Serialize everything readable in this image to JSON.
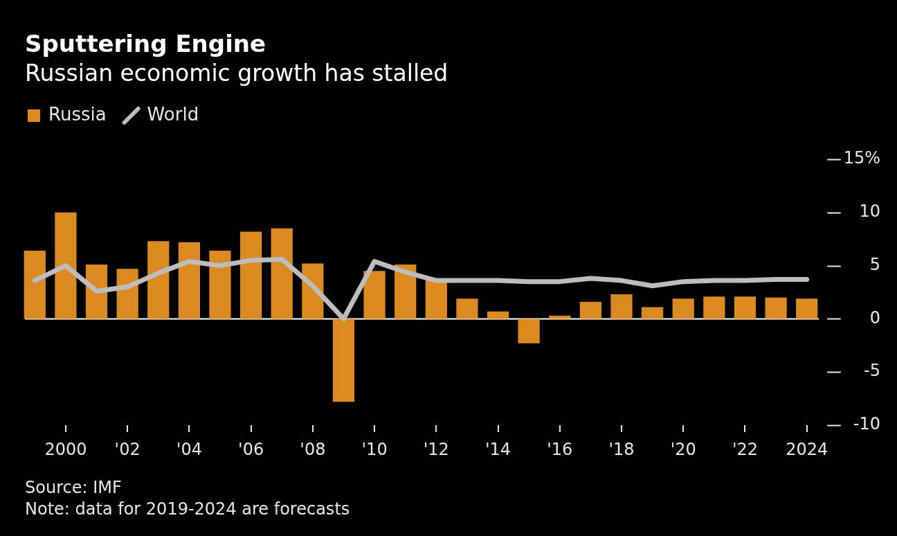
{
  "chart_data": {
    "type": "bar",
    "title": "Sputtering Engine",
    "subtitle": "Russian economic growth has stalled",
    "categories": [
      null,
      "2000",
      null,
      "'02",
      null,
      "'04",
      null,
      "'06",
      null,
      "'08",
      null,
      "'10",
      null,
      "'12",
      null,
      "'14",
      null,
      "'16",
      null,
      "'18",
      null,
      "'20",
      null,
      "'22",
      null,
      "2024"
    ],
    "series": [
      {
        "name": "Russia",
        "type": "bar",
        "color": "#db8a22",
        "values": [
          6.4,
          10.0,
          5.1,
          4.7,
          7.3,
          7.2,
          6.4,
          8.2,
          8.5,
          5.2,
          -7.8,
          4.5,
          5.1,
          3.7,
          1.9,
          0.7,
          -2.3,
          0.3,
          1.6,
          2.3,
          1.1,
          1.9,
          2.1,
          2.1,
          2.0,
          1.9
        ]
      },
      {
        "name": "World",
        "type": "line",
        "color": "#bdbdbd",
        "values": [
          3.6,
          5.0,
          2.6,
          3.0,
          4.3,
          5.4,
          5.0,
          5.5,
          5.6,
          3.1,
          0.0,
          5.4,
          4.4,
          3.6,
          3.6,
          3.6,
          3.5,
          3.5,
          3.8,
          3.6,
          3.1,
          3.5,
          3.6,
          3.6,
          3.7,
          3.7
        ]
      }
    ],
    "ylim": [
      -10,
      15
    ],
    "yticks": [
      {
        "value": 15,
        "label": "15%"
      },
      10,
      5,
      0,
      -5,
      -10
    ],
    "ref_lines": [
      {
        "axis": "y",
        "value": 0,
        "color": "#ffffff"
      }
    ],
    "legend": "top left",
    "annotations": [
      "Source: IMF",
      "Note: data for 2019-2024 are forecasts"
    ]
  }
}
